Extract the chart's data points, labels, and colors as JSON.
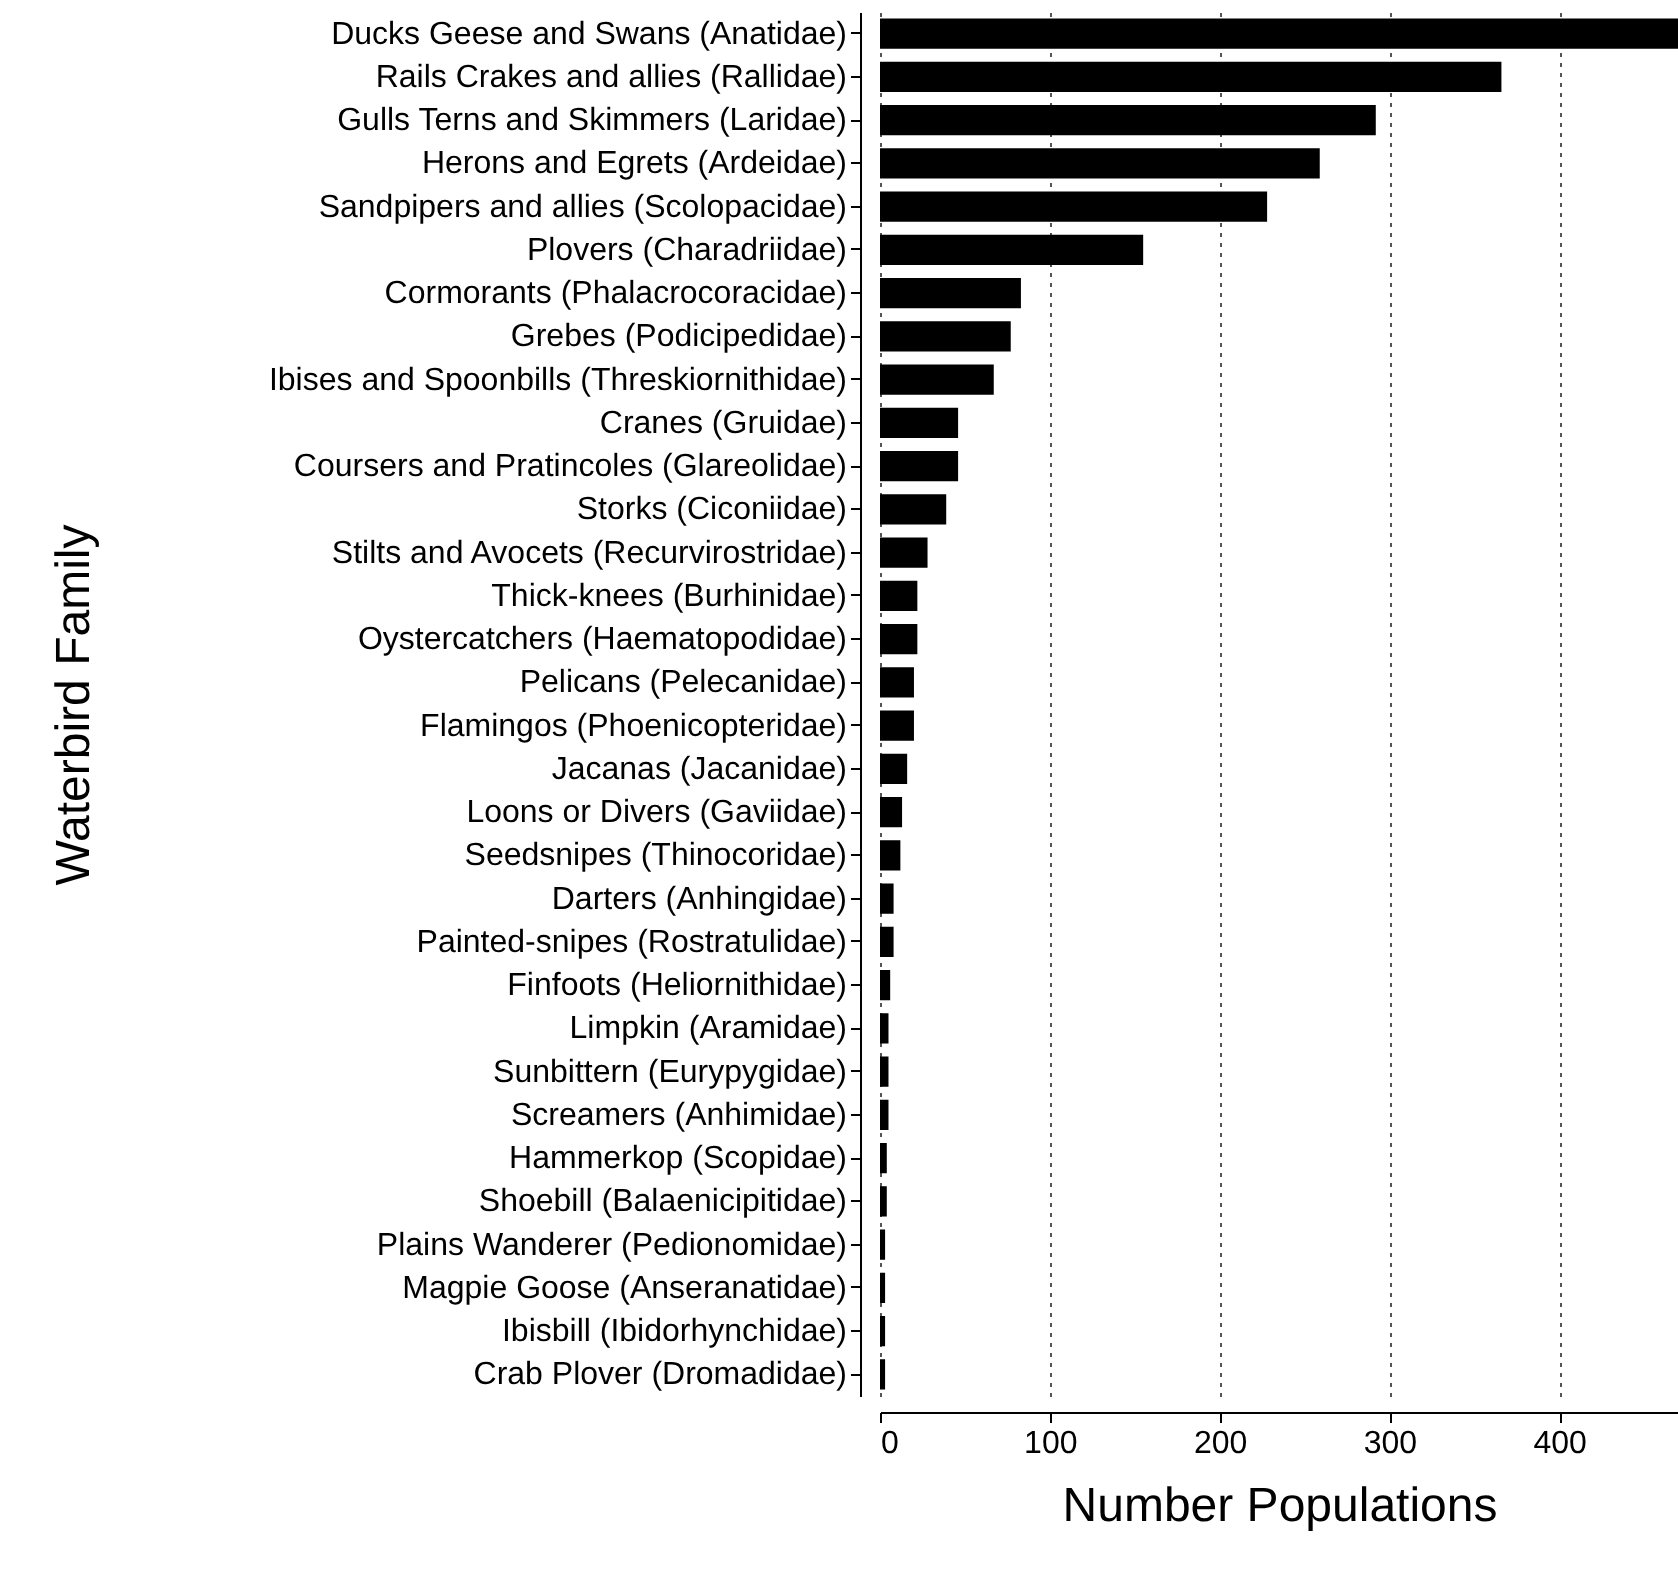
{
  "chart_data": {
    "type": "bar",
    "orientation": "horizontal",
    "xlabel": "Number Populations",
    "ylabel": "Waterbird Family",
    "categories": [
      "Ducks Geese and Swans (Anatidae)",
      "Rails Crakes and allies (Rallidae)",
      "Gulls Terns and Skimmers (Laridae)",
      "Herons and Egrets (Ardeidae)",
      "Sandpipers and allies (Scolopacidae)",
      "Plovers (Charadriidae)",
      "Cormorants (Phalacrocoracidae)",
      "Grebes (Podicipedidae)",
      "Ibises and Spoonbills (Threskiornithidae)",
      "Cranes (Gruidae)",
      "Coursers and Pratincoles (Glareolidae)",
      "Storks (Ciconiidae)",
      "Stilts and Avocets (Recurvirostridae)",
      "Thick-knees (Burhinidae)",
      "Oystercatchers (Haematopodidae)",
      "Pelicans (Pelecanidae)",
      "Flamingos (Phoenicopteridae)",
      "Jacanas (Jacanidae)",
      "Loons or Divers (Gaviidae)",
      "Seedsnipes (Thinocoridae)",
      "Darters (Anhingidae)",
      "Painted-snipes (Rostratulidae)",
      "Finfoots (Heliornithidae)",
      "Limpkin (Aramidae)",
      "Sunbittern (Eurypygidae)",
      "Screamers (Anhimidae)",
      "Hammerkop (Scopidae)",
      "Shoebill (Balaenicipitidae)",
      "Plains Wanderer (Pedionomidae)",
      "Magpie Goose (Anseranatidae)",
      "Ibisbill (Ibidorhynchidae)",
      "Crab Plover (Dromadidae)"
    ],
    "values": [
      470,
      366,
      292,
      259,
      228,
      155,
      83,
      77,
      67,
      46,
      46,
      39,
      28,
      22,
      22,
      20,
      20,
      16,
      13,
      12,
      8,
      8,
      6,
      5,
      5,
      5,
      4,
      4,
      3,
      3,
      3,
      3
    ],
    "color": "#000000",
    "xlim": [
      0,
      470
    ],
    "xticks": [
      0,
      100,
      200,
      300,
      400
    ],
    "grid": "x"
  }
}
